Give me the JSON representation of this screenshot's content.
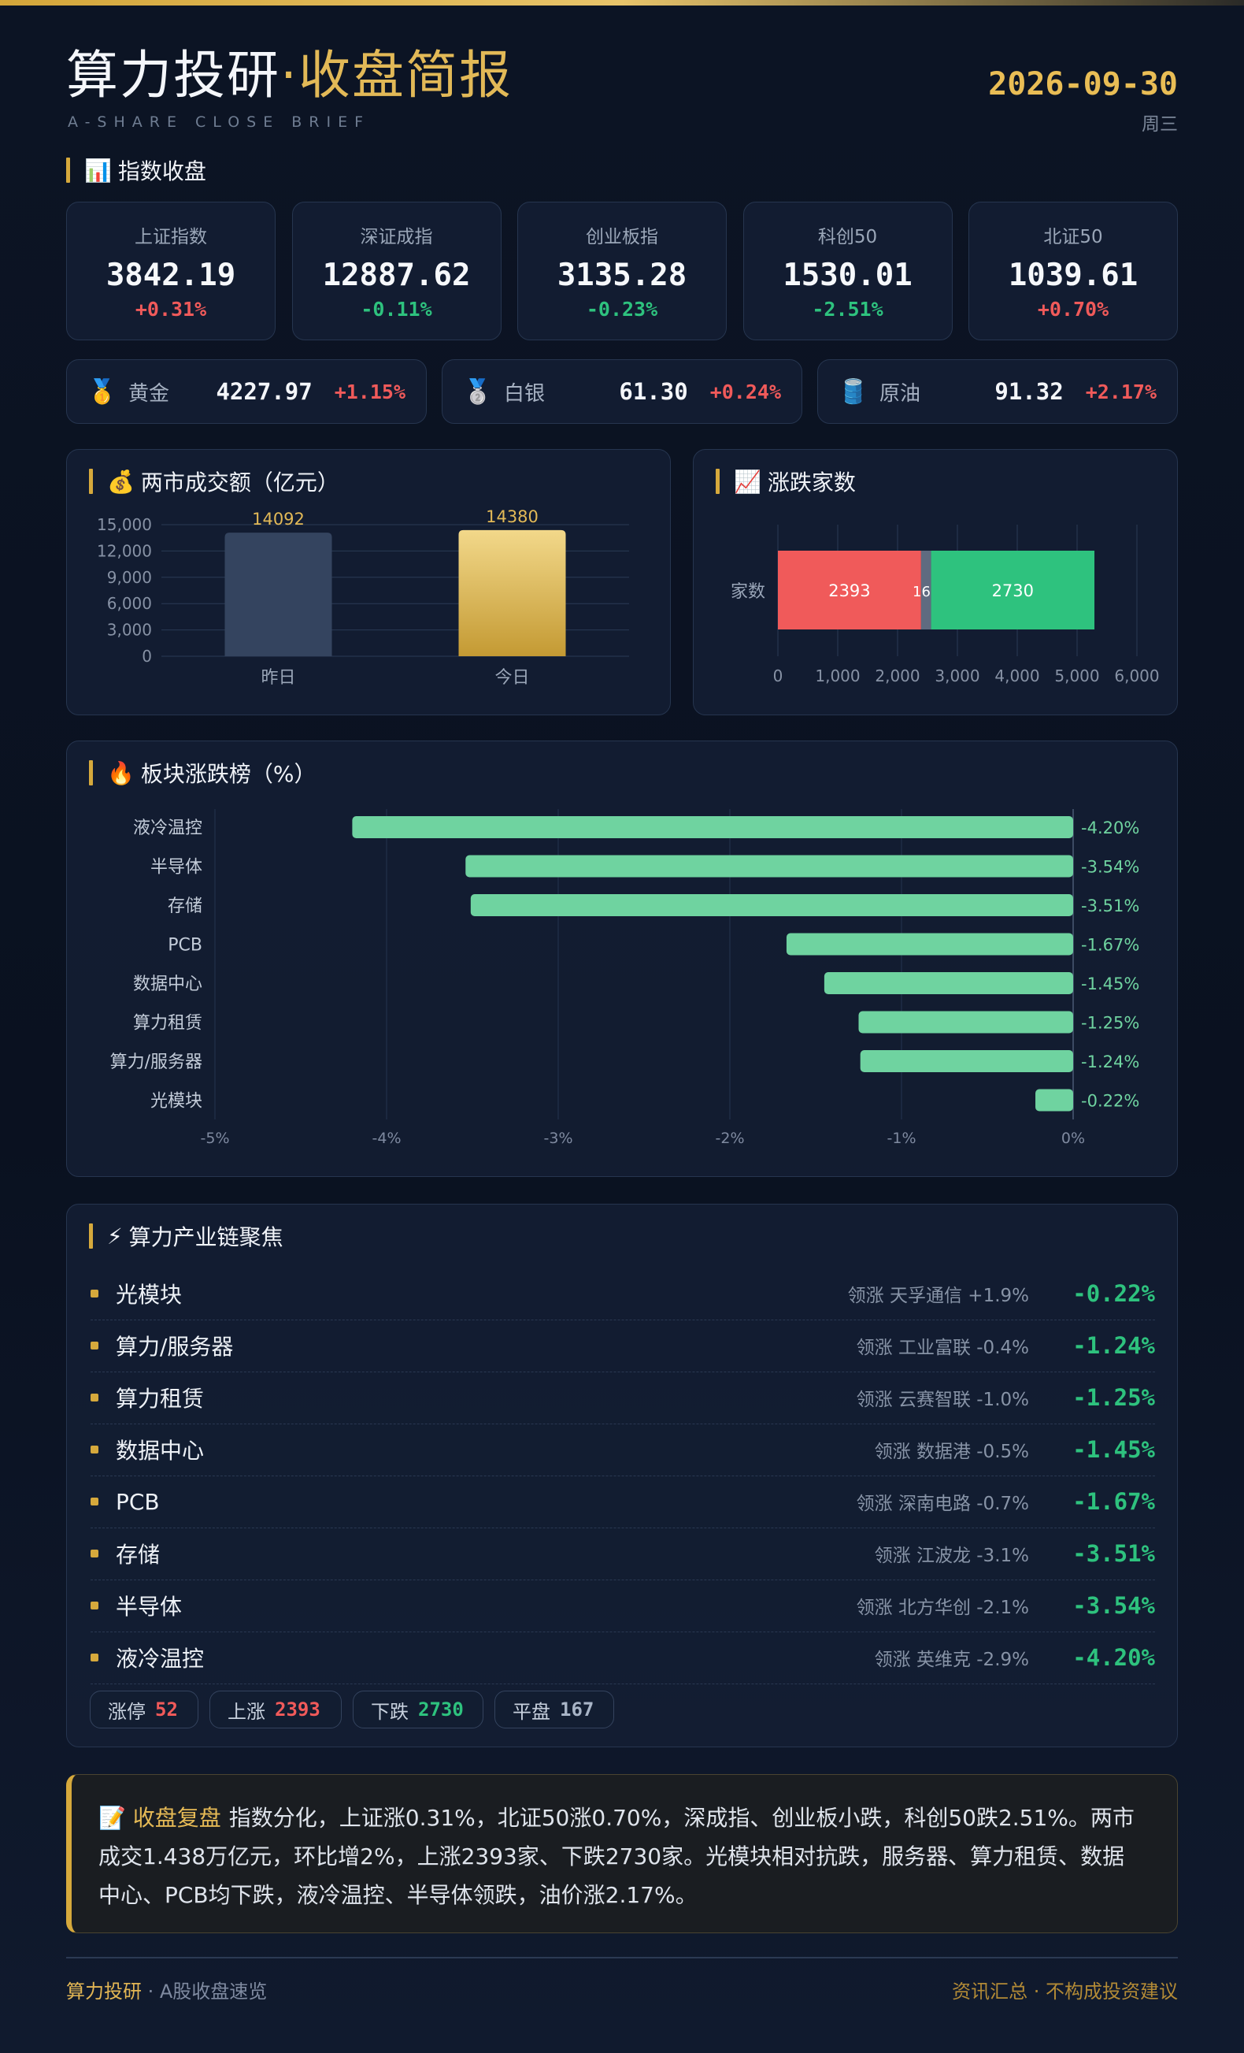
{
  "header": {
    "title_main": "算力投研",
    "title_sep": "·",
    "title_accent": "收盘简报",
    "subtitle": "A-SHARE CLOSE BRIEF",
    "date": "2026-09-30",
    "weekday": "周三"
  },
  "sections": {
    "indices": {
      "icon": "📊",
      "title": "指数收盘"
    },
    "turnover": {
      "icon": "💰",
      "title": "两市成交额（亿元）"
    },
    "breadth": {
      "icon": "📈",
      "title": "涨跌家数"
    },
    "sectors": {
      "icon": "🔥",
      "title": "板块涨跌榜（%）"
    },
    "chain": {
      "icon": "⚡",
      "title": "算力产业链聚焦"
    }
  },
  "indices": [
    {
      "name": "上证指数",
      "value": "3842.19",
      "change": "+0.31%",
      "dir": "up"
    },
    {
      "name": "深证成指",
      "value": "12887.62",
      "change": "-0.11%",
      "dir": "down"
    },
    {
      "name": "创业板指",
      "value": "3135.28",
      "change": "-0.23%",
      "dir": "down"
    },
    {
      "name": "科创50",
      "value": "1530.01",
      "change": "-2.51%",
      "dir": "down"
    },
    {
      "name": "北证50",
      "value": "1039.61",
      "change": "+0.70%",
      "dir": "up"
    }
  ],
  "commodities": [
    {
      "icon": "🥇",
      "name": "黄金",
      "value": "4227.97",
      "change": "+1.15%",
      "dir": "up"
    },
    {
      "icon": "🥈",
      "name": "白银",
      "value": "61.30",
      "change": "+0.24%",
      "dir": "up"
    },
    {
      "icon": "🛢️",
      "name": "原油",
      "value": "91.32",
      "change": "+2.17%",
      "dir": "up"
    }
  ],
  "chart_data": [
    {
      "type": "bar",
      "title": "两市成交额（亿元）",
      "categories": [
        "昨日",
        "今日"
      ],
      "values": [
        14092,
        14380
      ],
      "ylim": [
        0,
        15000
      ],
      "yticks": [
        0,
        3000,
        6000,
        9000,
        12000,
        15000
      ],
      "colors": [
        "#34445f",
        "#e2b957"
      ]
    },
    {
      "type": "bar",
      "orientation": "horizontal-stacked",
      "title": "涨跌家数",
      "categories": [
        "家数"
      ],
      "series": [
        {
          "values": [
            2393
          ],
          "color": "#f05a5a"
        },
        {
          "values": [
            167
          ],
          "color": "#5f6b80"
        },
        {
          "values": [
            2730
          ],
          "color": "#2ec27e"
        }
      ],
      "xlim": [
        0,
        6000
      ],
      "xticks": [
        0,
        1000,
        2000,
        3000,
        4000,
        5000,
        6000
      ]
    },
    {
      "type": "bar",
      "orientation": "horizontal",
      "title": "板块涨跌榜（%）",
      "categories": [
        "液冷温控",
        "半导体",
        "存储",
        "PCB",
        "数据中心",
        "算力租赁",
        "算力/服务器",
        "光模块"
      ],
      "values": [
        -4.2,
        -3.54,
        -3.51,
        -1.67,
        -1.45,
        -1.25,
        -1.24,
        -0.22
      ],
      "labels": [
        "-4.20%",
        "-3.54%",
        "-3.51%",
        "-1.67%",
        "-1.45%",
        "-1.25%",
        "-1.24%",
        "-0.22%"
      ],
      "xlim": [
        -5,
        0
      ],
      "xticks": [
        "-5%",
        "-4%",
        "-3%",
        "-2%",
        "-1%",
        "0%"
      ],
      "color": "#6fd3a0"
    }
  ],
  "chain": [
    {
      "name": "光模块",
      "lead": "领涨 天孚通信 +1.9%",
      "pct": "-0.22%"
    },
    {
      "name": "算力/服务器",
      "lead": "领涨 工业富联 -0.4%",
      "pct": "-1.24%"
    },
    {
      "name": "算力租赁",
      "lead": "领涨 云赛智联 -1.0%",
      "pct": "-1.25%"
    },
    {
      "name": "数据中心",
      "lead": "领涨 数据港 -0.5%",
      "pct": "-1.45%"
    },
    {
      "name": "PCB",
      "lead": "领涨 深南电路 -0.7%",
      "pct": "-1.67%"
    },
    {
      "name": "存储",
      "lead": "领涨 江波龙 -3.1%",
      "pct": "-3.51%"
    },
    {
      "name": "半导体",
      "lead": "领涨 北方华创 -2.1%",
      "pct": "-3.54%"
    },
    {
      "name": "液冷温控",
      "lead": "领涨 英维克 -2.9%",
      "pct": "-4.20%"
    }
  ],
  "stats": [
    {
      "label": "涨停",
      "value": "52",
      "dir": "up"
    },
    {
      "label": "上涨",
      "value": "2393",
      "dir": "up"
    },
    {
      "label": "下跌",
      "value": "2730",
      "dir": "down"
    },
    {
      "label": "平盘",
      "value": "167",
      "dir": "flat"
    }
  ],
  "review": {
    "icon": "📝",
    "heading": "收盘复盘",
    "text": "指数分化，上证涨0.31%，北证50涨0.70%，深成指、创业板小跌，科创50跌2.51%。两市成交1.438万亿元，环比增2%，上涨2393家、下跌2730家。光模块相对抗跌，服务器、算力租赁、数据中心、PCB均下跌，液冷温控、半导体领跌，油价涨2.17%。"
  },
  "footer": {
    "brand": "算力投研",
    "brand_suffix": " · A股收盘速览",
    "disclaimer": "资讯汇总 · 不构成投资建议"
  }
}
